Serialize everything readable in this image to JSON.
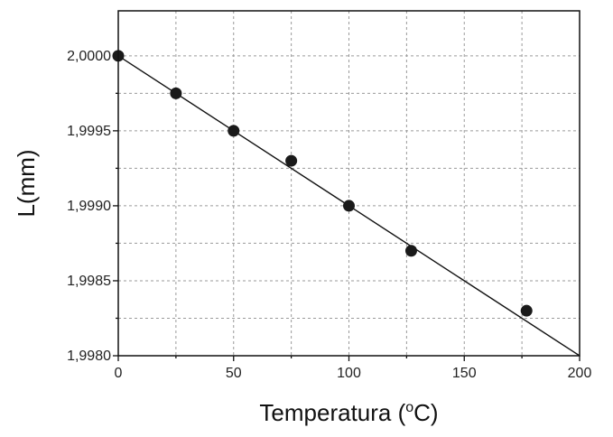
{
  "chart_data": {
    "type": "scatter",
    "xlabel": "Temperatura (",
    "xlabel_super": "o",
    "xlabel_unit": "C)",
    "ylabel": "L(mm)",
    "xlim": [
      0,
      200
    ],
    "ylim": [
      1.998,
      2.0003
    ],
    "x_ticks": [
      0,
      50,
      100,
      150,
      200
    ],
    "x_tick_labels": [
      "0",
      "50",
      "100",
      "150",
      "200"
    ],
    "x_minor_ticks": [
      25,
      75,
      125,
      175
    ],
    "y_ticks": [
      1.998,
      1.9985,
      1.999,
      1.9995,
      2.0
    ],
    "y_tick_labels": [
      "1,9980",
      "1,9985",
      "1,9990",
      "1,9995",
      "2,0000"
    ],
    "y_minor_ticks": [
      1.99825,
      1.99875,
      1.99925,
      1.99975
    ],
    "grid": true,
    "points": [
      {
        "x": 0,
        "y": 2.0
      },
      {
        "x": 25,
        "y": 1.99975
      },
      {
        "x": 50,
        "y": 1.9995
      },
      {
        "x": 75,
        "y": 1.9993
      },
      {
        "x": 100,
        "y": 1.999
      },
      {
        "x": 127,
        "y": 1.9987
      },
      {
        "x": 177,
        "y": 1.9983
      }
    ],
    "fit_line": {
      "x": [
        0,
        200
      ],
      "y": [
        2.0,
        1.998
      ]
    },
    "colors": {
      "points": "#1a1a1a",
      "line": "#111111",
      "grid": "#9a9a9a"
    }
  }
}
